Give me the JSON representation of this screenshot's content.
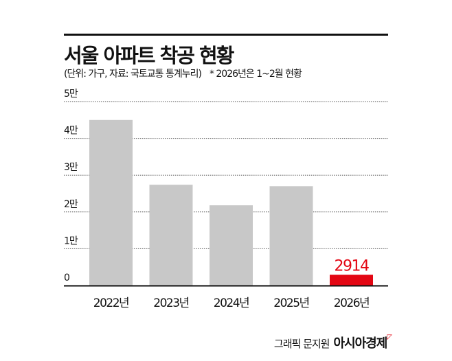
{
  "chart_data": {
    "type": "bar",
    "title": "서울 아파트 착공 현황",
    "subtitle": "(단위: 가구, 자료: 국토교통 통계누리)",
    "note": "* 2026년은 1~2월 현황",
    "categories": [
      "2022년",
      "2023년",
      "2024년",
      "2025년",
      "2026년"
    ],
    "values": [
      45000,
      27400,
      21800,
      27000,
      2914
    ],
    "highlight_label": "2914",
    "highlight_index": 4,
    "ylim": [
      0,
      50000
    ],
    "yticks": [
      0,
      10000,
      20000,
      30000,
      40000,
      50000
    ],
    "ytick_labels": [
      "0",
      "1만",
      "2만",
      "3만",
      "4만",
      "5만"
    ],
    "grid": true,
    "colors": {
      "bar": "#c8c8c8",
      "highlight": "#e30613",
      "axis": "#111111"
    }
  },
  "credit": {
    "text": "그래픽 문지원",
    "brand": "아시아경제",
    "brand_mark": "◸"
  }
}
